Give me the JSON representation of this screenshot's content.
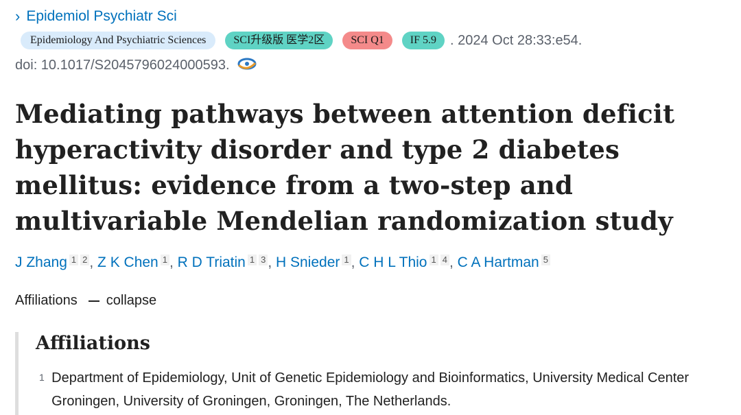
{
  "journal": {
    "abbrev": "Epidemiol Psychiatr Sci"
  },
  "badges": {
    "journal_full": "Epidemiology And Psychiatric Sciences",
    "sci_rank": "SCI升级版 医学2区",
    "quartile": "SCI Q1",
    "impact_factor": "IF 5.9"
  },
  "citation": ". 2024 Oct 28:33:e54.",
  "doi": "doi: 10.1017/S2045796024000593.",
  "title": "Mediating pathways between attention deficit hyperactivity disorder and type 2 diabetes mellitus: evidence from a two-step and multivariable Mendelian randomization study",
  "authors": [
    {
      "name": "J Zhang",
      "affs": [
        "1",
        "2"
      ]
    },
    {
      "name": "Z K Chen",
      "affs": [
        "1"
      ]
    },
    {
      "name": "R D Triatin",
      "affs": [
        "1",
        "3"
      ]
    },
    {
      "name": "H Snieder",
      "affs": [
        "1"
      ]
    },
    {
      "name": "C H L Thio",
      "affs": [
        "1",
        "4"
      ]
    },
    {
      "name": "C A Hartman",
      "affs": [
        "5"
      ]
    }
  ],
  "affiliations_toggle": {
    "label": "Affiliations",
    "action": "collapse"
  },
  "affiliations": {
    "heading": "Affiliations",
    "items": [
      {
        "num": "1",
        "text": "Department of Epidemiology, Unit of Genetic Epidemiology and Bioinformatics, University Medical Center Groningen, University of Groningen, Groningen, The Netherlands."
      }
    ]
  },
  "icons": {
    "journal_chevron": "chevron-right-icon",
    "doi_icon": "europepmc-icon"
  },
  "colors": {
    "link": "#0071bc",
    "badge_blue": "#d9ebfb",
    "badge_teal": "#5fd3c4",
    "badge_red": "#f48a8a"
  }
}
